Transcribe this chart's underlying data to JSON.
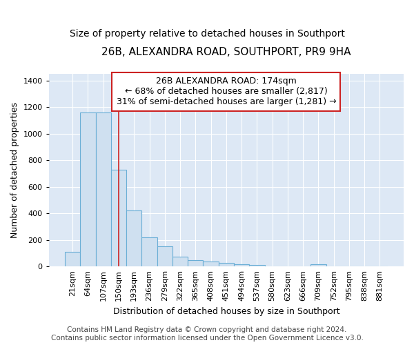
{
  "title": "26B, ALEXANDRA ROAD, SOUTHPORT, PR9 9HA",
  "subtitle": "Size of property relative to detached houses in Southport",
  "xlabel": "Distribution of detached houses by size in Southport",
  "ylabel": "Number of detached properties",
  "categories": [
    "21sqm",
    "64sqm",
    "107sqm",
    "150sqm",
    "193sqm",
    "236sqm",
    "279sqm",
    "322sqm",
    "365sqm",
    "408sqm",
    "451sqm",
    "494sqm",
    "537sqm",
    "580sqm",
    "623sqm",
    "666sqm",
    "709sqm",
    "752sqm",
    "795sqm",
    "838sqm",
    "881sqm"
  ],
  "values": [
    110,
    1160,
    1158,
    730,
    420,
    220,
    150,
    75,
    50,
    38,
    25,
    15,
    13,
    0,
    0,
    0,
    18,
    0,
    0,
    0,
    0
  ],
  "bar_color": "#cfe0f0",
  "bar_edge_color": "#6aaed6",
  "annotation_text_line1": "26B ALEXANDRA ROAD: 174sqm",
  "annotation_text_line2": "← 68% of detached houses are smaller (2,817)",
  "annotation_text_line3": "31% of semi-detached houses are larger (1,281) →",
  "annotation_box_edge_color": "#cc2222",
  "annotation_box_face_color": "#ffffff",
  "vertical_line_color": "#cc2222",
  "vertical_line_x": 3.0,
  "ylim": [
    0,
    1450
  ],
  "yticks": [
    0,
    200,
    400,
    600,
    800,
    1000,
    1200,
    1400
  ],
  "background_color": "#dde8f5",
  "grid_color": "#ffffff",
  "fig_background": "#ffffff",
  "title_fontsize": 11,
  "subtitle_fontsize": 10,
  "xlabel_fontsize": 9,
  "ylabel_fontsize": 9,
  "tick_fontsize": 8,
  "annotation_fontsize": 9,
  "footer_fontsize": 7.5,
  "footer_line1": "Contains HM Land Registry data © Crown copyright and database right 2024.",
  "footer_line2": "Contains public sector information licensed under the Open Government Licence v3.0."
}
